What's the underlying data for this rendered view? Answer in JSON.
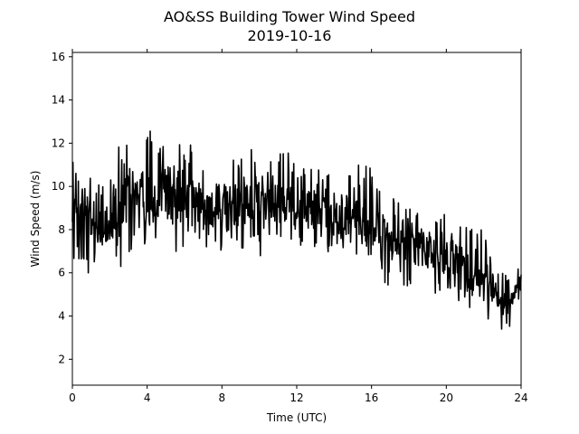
{
  "chart_data": {
    "type": "line",
    "title": "AO&SS Building Tower Wind Speed",
    "subtitle": "2019-10-16",
    "xlabel": "Time (UTC)",
    "ylabel": "Wind Speed (m/s)",
    "xlim": [
      0,
      24
    ],
    "ylim": [
      0.8,
      16.2
    ],
    "xticks": [
      0,
      4,
      8,
      12,
      16,
      20,
      24
    ],
    "yticks": [
      2,
      4,
      6,
      8,
      10,
      12,
      14,
      16
    ],
    "grid": false,
    "legend": "none",
    "line_color": "#000000",
    "series": [
      {
        "x": [
          0.0,
          0.5,
          1.0,
          1.5,
          2.0,
          2.5,
          3.0,
          3.5,
          4.0,
          4.5,
          5.0,
          5.5,
          6.0,
          6.5,
          7.0,
          7.5,
          8.0,
          8.5,
          9.0,
          9.5,
          10.0,
          10.5,
          11.0,
          11.5,
          12.0,
          12.5,
          13.0,
          13.5,
          14.0,
          14.5,
          15.0,
          15.5,
          16.0,
          16.5,
          17.0,
          17.5,
          18.0,
          18.5,
          19.0,
          19.5,
          20.0,
          20.5,
          21.0,
          21.5,
          22.0,
          22.5,
          23.0,
          23.5,
          24.0
        ],
        "y": [
          8.5,
          9.5,
          8.6,
          8.0,
          8.2,
          8.8,
          9.8,
          9.5,
          9.1,
          9.6,
          9.7,
          9.4,
          9.5,
          9.6,
          9.3,
          9.0,
          9.0,
          9.1,
          9.2,
          9.3,
          9.4,
          9.4,
          9.3,
          9.0,
          9.1,
          9.0,
          8.8,
          8.6,
          8.5,
          8.7,
          8.9,
          8.6,
          8.7,
          8.2,
          7.7,
          7.5,
          7.5,
          7.3,
          7.0,
          6.8,
          6.9,
          6.6,
          6.2,
          5.9,
          5.8,
          5.2,
          4.5,
          4.8,
          5.7
        ],
        "min": [
          6.0,
          6.0,
          5.7,
          6.9,
          6.5,
          6.0,
          7.0,
          6.6,
          7.2,
          7.3,
          7.6,
          7.0,
          6.6,
          7.6,
          7.2,
          7.1,
          7.0,
          7.3,
          7.0,
          7.4,
          6.5,
          7.7,
          7.6,
          7.7,
          7.1,
          7.3,
          6.8,
          6.5,
          7.0,
          6.8,
          6.5,
          6.9,
          6.7,
          6.3,
          4.4,
          5.3,
          5.3,
          4.1,
          5.2,
          5.0,
          5.3,
          4.8,
          3.5,
          4.7,
          4.2,
          3.3,
          3.2,
          3.6,
          4.9
        ],
        "max": [
          12.3,
          10.3,
          10.8,
          10.2,
          10.9,
          12.5,
          12.8,
          10.0,
          12.9,
          13.0,
          11.9,
          11.8,
          12.6,
          11.7,
          11.1,
          10.7,
          11.6,
          11.3,
          11.6,
          12.2,
          11.1,
          11.1,
          12.5,
          11.7,
          10.9,
          10.8,
          10.9,
          10.5,
          10.8,
          12.0,
          10.2,
          12.2,
          10.7,
          10.1,
          9.5,
          9.3,
          9.1,
          9.0,
          8.6,
          8.8,
          8.7,
          8.4,
          8.6,
          8.0,
          8.1,
          6.3,
          6.1,
          5.5,
          6.7
        ]
      }
    ]
  }
}
